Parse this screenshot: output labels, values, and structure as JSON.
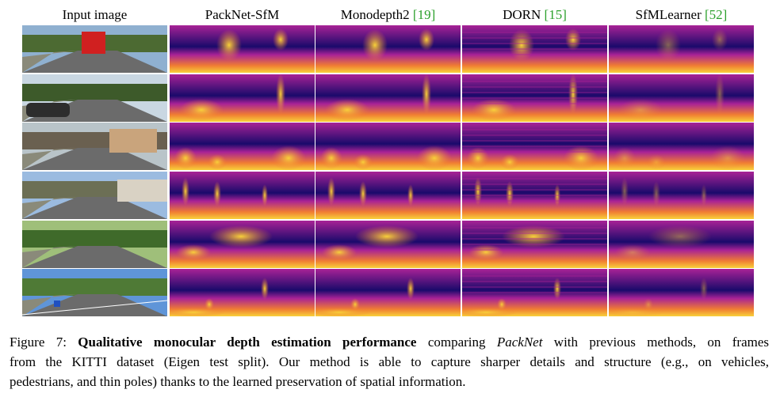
{
  "columns": [
    {
      "key": "input",
      "label": "Input image",
      "cite": ""
    },
    {
      "key": "packnet",
      "label": "PackNet-SfM",
      "cite": ""
    },
    {
      "key": "monodepth2",
      "label": "Monodepth2 ",
      "cite": "[19]"
    },
    {
      "key": "dorn",
      "label": "DORN ",
      "cite": "[15]"
    },
    {
      "key": "sfmlearner",
      "label": "SfMLearner ",
      "cite": "[52]"
    }
  ],
  "rows": [
    {
      "scene": "road-with-red-truck"
    },
    {
      "scene": "street-with-parked-car"
    },
    {
      "scene": "street-with-pedestrians-and-bikes"
    },
    {
      "scene": "road-with-buildings"
    },
    {
      "scene": "tree-lined-road"
    },
    {
      "scene": "highway-with-signs"
    }
  ],
  "colors": {
    "depth_far": "#1a0a6b",
    "depth_mid": "#a82296",
    "depth_near": "#f8d13a",
    "citation": "#2ca02c"
  },
  "caption": {
    "line1_prefix": "Figure 7: ",
    "line1_bold": "Qualitative monocular depth estimation performance",
    "line1_mid": " comparing ",
    "line1_italic": "PackNet",
    "line1_suffix": " with previous methods, on frames",
    "line2": "from the KITTI dataset (Eigen test split).  Our method is able to capture sharper details and structure (e.g., on vehicles,",
    "line3": "pedestrians, and thin poles) thanks to the learned preservation of spatial information."
  }
}
